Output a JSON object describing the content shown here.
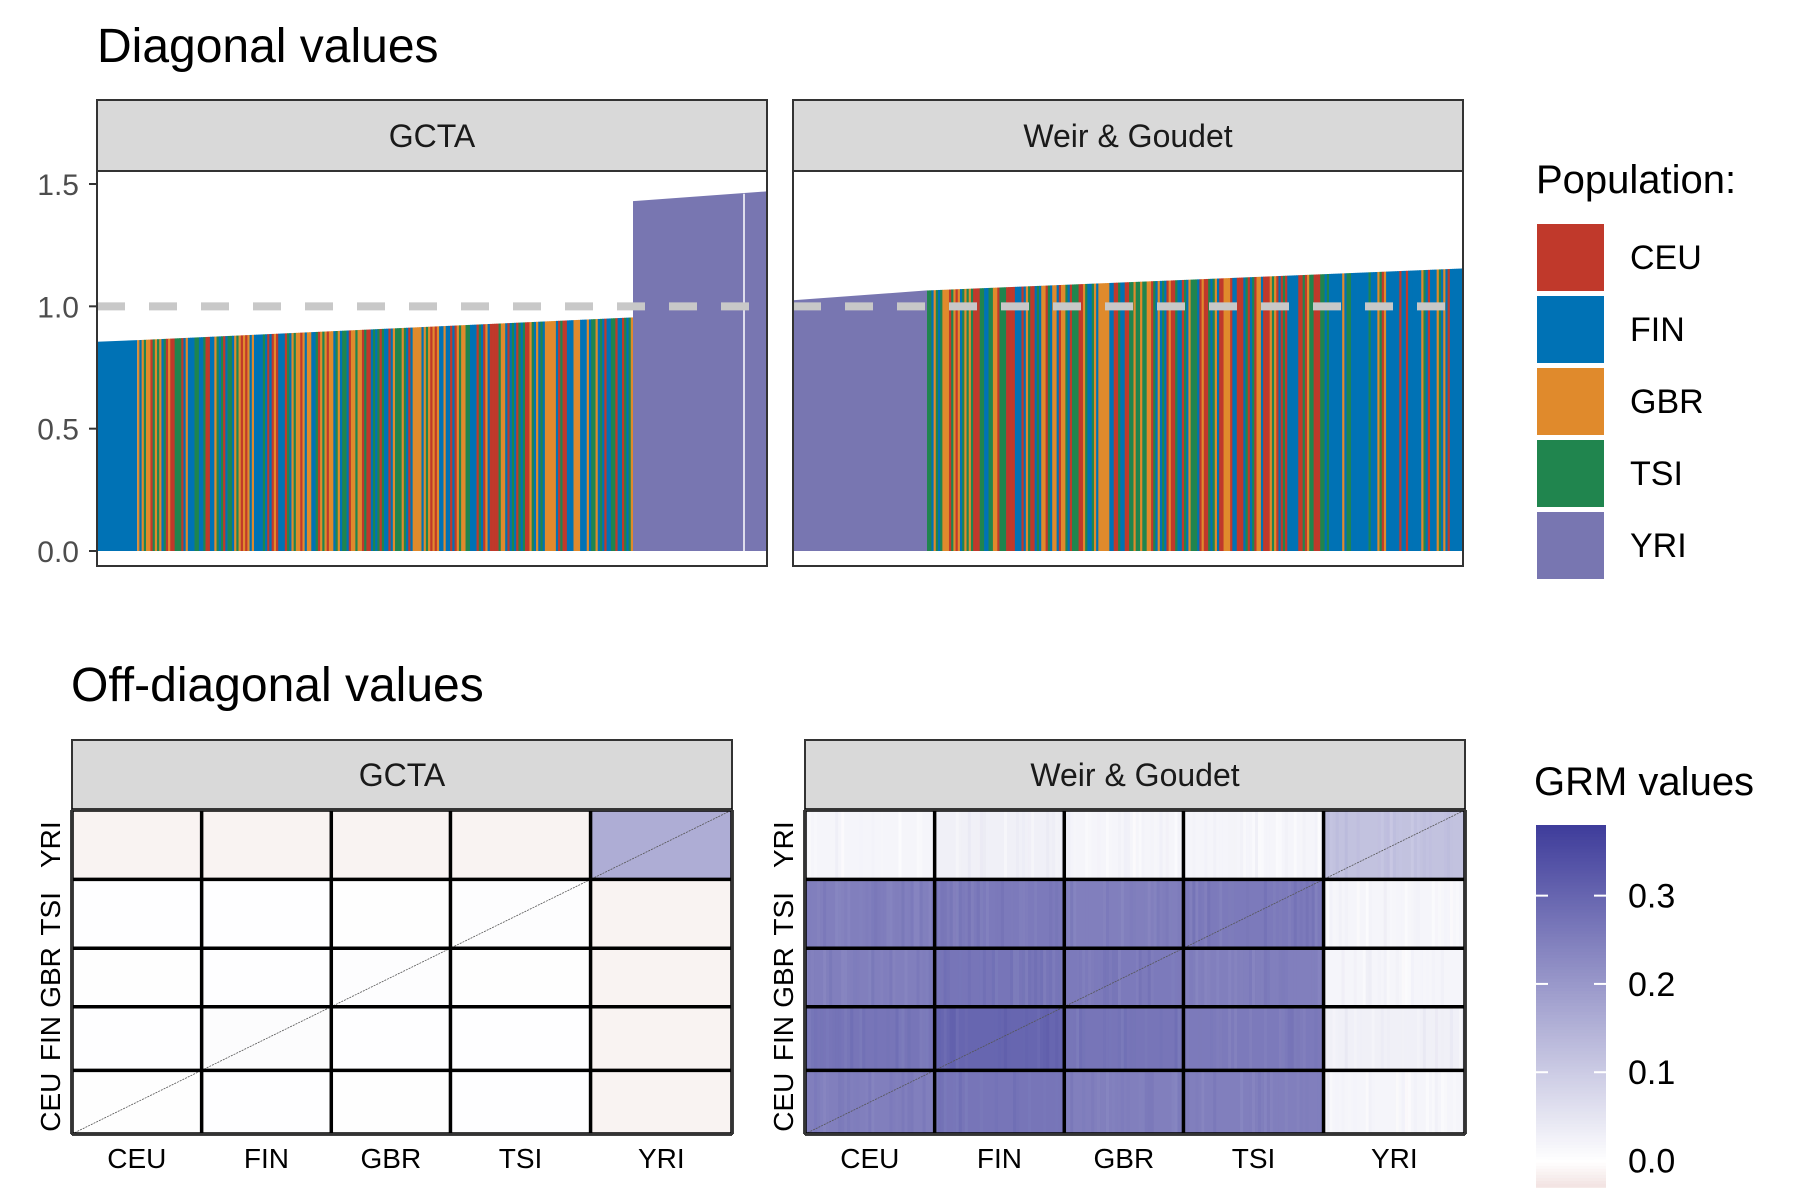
{
  "chart_data": [
    {
      "type": "bar",
      "title": "Diagonal values",
      "facets": [
        "GCTA",
        "Weir & Goudet"
      ],
      "xlabel": "",
      "ylabel": "",
      "ylim": [
        0,
        1.75
      ],
      "yticks": [
        0.0,
        0.5,
        1.0,
        1.5
      ],
      "ytick_labels": [
        "0.0",
        "0.5",
        "1.0",
        "1.5"
      ],
      "reference_line": {
        "value": 1.0,
        "style": "dashed",
        "color": "#c8c8c8"
      },
      "legend": {
        "title": "Population:",
        "placement": "right",
        "entries": [
          {
            "name": "CEU",
            "color": "#c0392b"
          },
          {
            "name": "FIN",
            "color": "#0072b5"
          },
          {
            "name": "GBR",
            "color": "#e08a2c"
          },
          {
            "name": "TSI",
            "color": "#20854e"
          },
          {
            "name": "YRI",
            "color": "#7876b1"
          }
        ]
      },
      "series": [
        {
          "facet": "GCTA",
          "segments": [
            {
              "population": "FIN",
              "start_fraction": 0.0,
              "end_fraction": 0.06,
              "from_value": 0.855,
              "to_value": 0.862
            },
            {
              "population": "mixed",
              "start_fraction": 0.06,
              "end_fraction": 0.8,
              "from_value": 0.862,
              "to_value": 0.955
            },
            {
              "population": "YRI",
              "start_fraction": 0.8,
              "end_fraction": 1.0,
              "from_value": 1.43,
              "to_value": 1.47
            }
          ]
        },
        {
          "facet": "Weir & Goudet",
          "segments": [
            {
              "population": "YRI",
              "start_fraction": 0.0,
              "end_fraction": 0.2,
              "from_value": 1.025,
              "to_value": 1.065
            },
            {
              "population": "mixed",
              "start_fraction": 0.2,
              "end_fraction": 1.0,
              "from_value": 1.065,
              "to_value": 1.155
            }
          ]
        }
      ]
    },
    {
      "type": "heatmap",
      "title": "Off-diagonal values",
      "facets": [
        "GCTA",
        "Weir & Goudet"
      ],
      "categories": [
        "CEU",
        "FIN",
        "GBR",
        "TSI",
        "YRI"
      ],
      "block_sizes": [
        99,
        99,
        91,
        107,
        108
      ],
      "color_scale": {
        "title": "GRM values",
        "ticks": [
          0.0,
          0.1,
          0.2,
          0.3
        ],
        "tick_labels": [
          "0.0",
          "0.1",
          "0.2",
          "0.3"
        ],
        "min": -0.03,
        "max": 0.38,
        "colors": [
          "#f1e0df",
          "#ffffff",
          "#3f3d9b"
        ],
        "placement": "right"
      },
      "series": [
        {
          "facet": "GCTA",
          "block_means": [
            [
              0.002,
              0.001,
              0.002,
              0.001,
              -0.012
            ],
            [
              0.001,
              0.006,
              0.001,
              0.001,
              -0.012
            ],
            [
              0.002,
              0.001,
              0.003,
              0.002,
              -0.012
            ],
            [
              0.001,
              0.001,
              0.002,
              0.004,
              -0.012
            ],
            [
              -0.012,
              -0.012,
              -0.012,
              -0.012,
              0.16
            ]
          ]
        },
        {
          "facet": "Weir & Goudet",
          "block_means": [
            [
              0.25,
              0.27,
              0.25,
              0.25,
              0.02
            ],
            [
              0.27,
              0.3,
              0.27,
              0.26,
              0.03
            ],
            [
              0.25,
              0.27,
              0.26,
              0.25,
              0.02
            ],
            [
              0.25,
              0.26,
              0.25,
              0.26,
              0.02
            ],
            [
              0.02,
              0.03,
              0.02,
              0.02,
              0.12
            ]
          ]
        }
      ]
    }
  ]
}
